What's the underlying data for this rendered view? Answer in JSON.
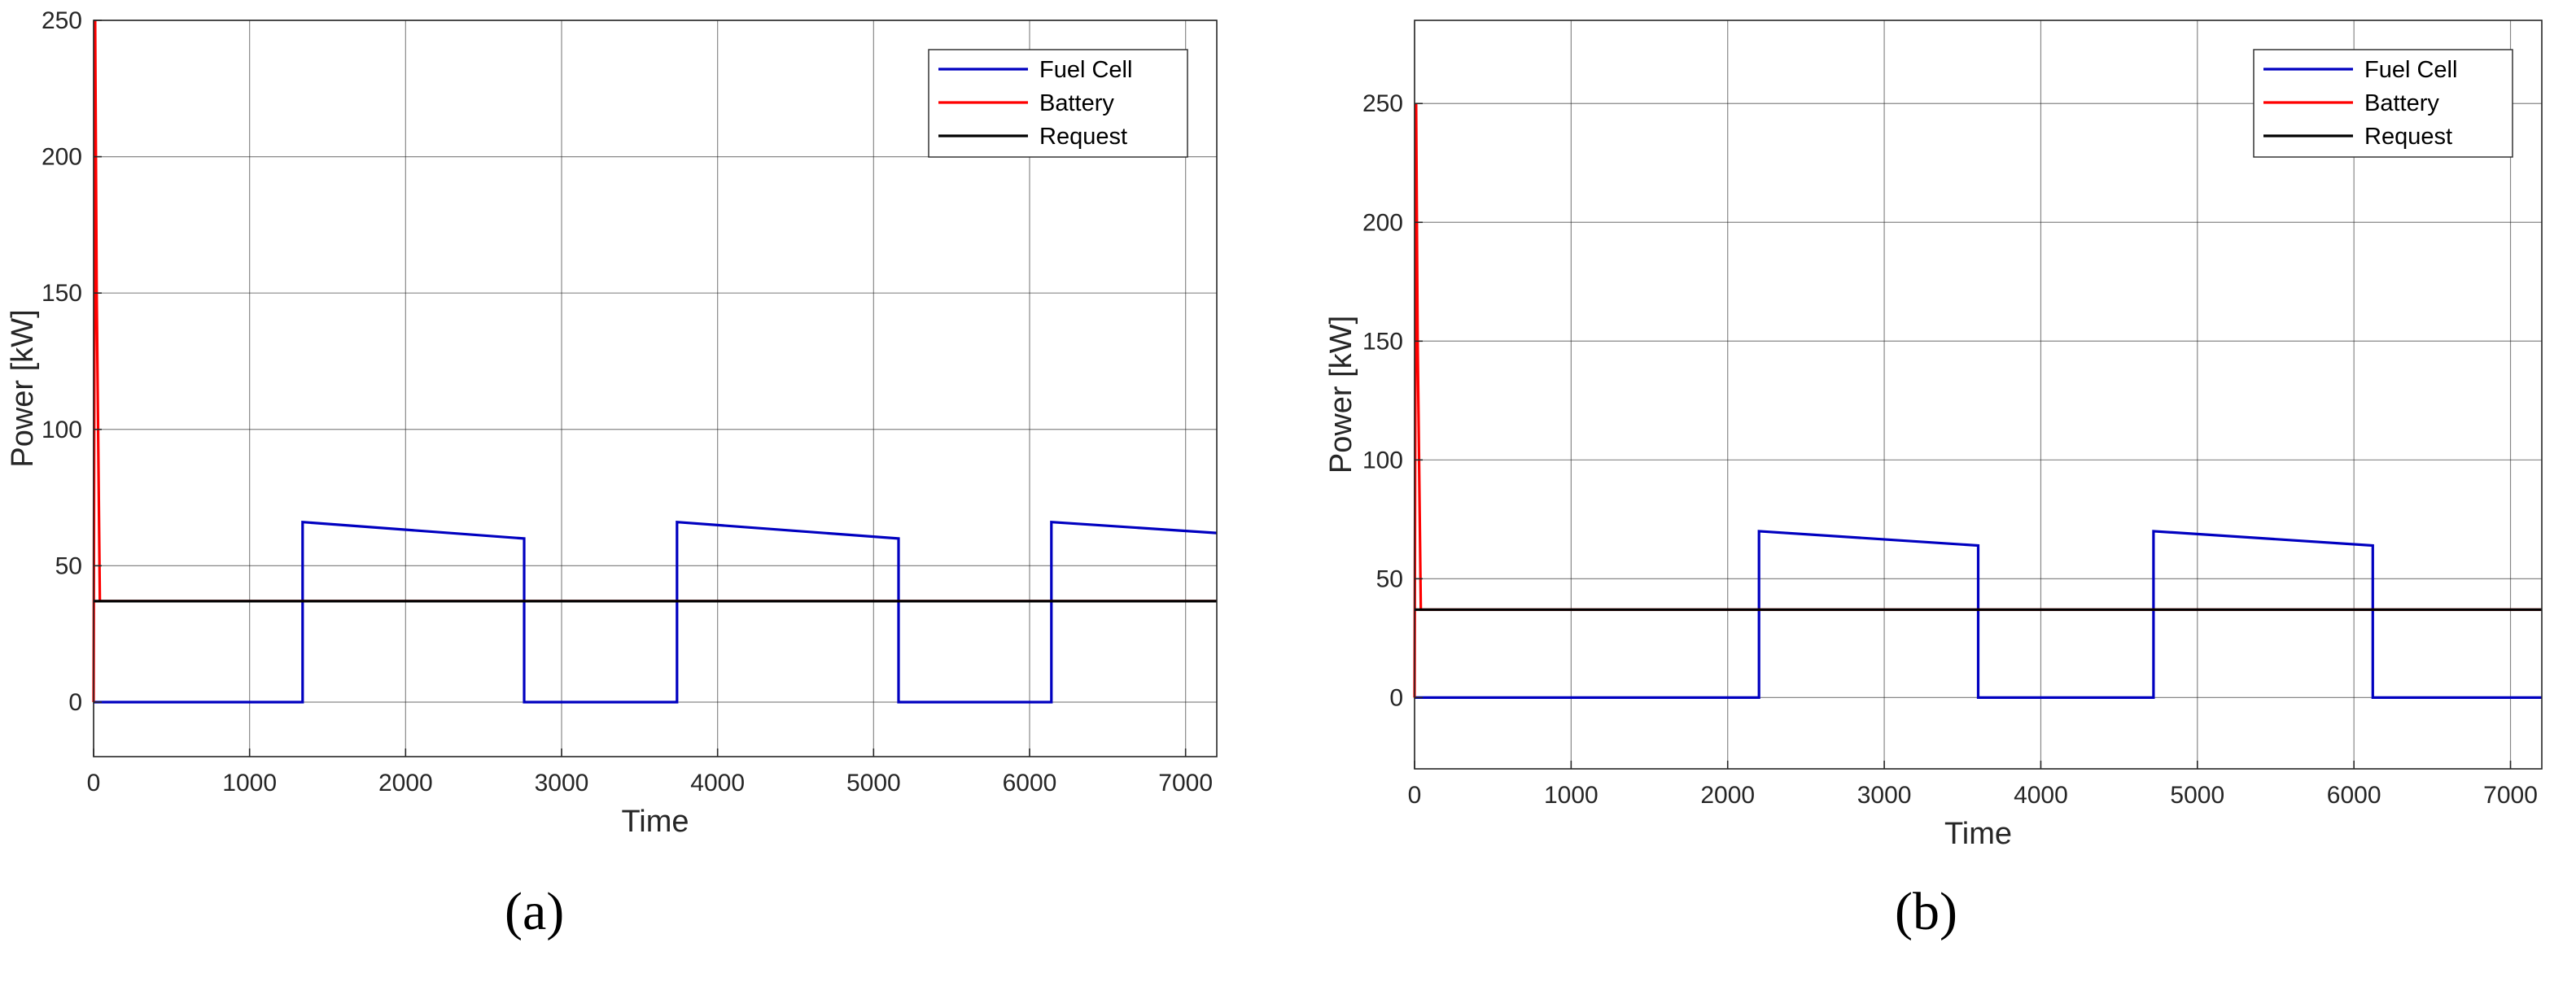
{
  "chart_data": [
    {
      "type": "line",
      "caption": "(a)",
      "xlabel": "Time",
      "ylabel": "Power [kW]",
      "xlim": [
        0,
        7200
      ],
      "ylim": [
        -20,
        250
      ],
      "xticks": [
        0,
        1000,
        2000,
        3000,
        4000,
        5000,
        6000,
        7000
      ],
      "yticks": [
        0,
        50,
        100,
        150,
        200,
        250
      ],
      "grid": true,
      "legend_position": "top-right",
      "colors": {
        "Fuel Cell": "#0000c0",
        "Battery": "#ff0000",
        "Request": "#000000"
      },
      "series": [
        {
          "name": "Fuel Cell",
          "x": [
            0,
            1340,
            1340,
            2760,
            2760,
            3740,
            3740,
            5160,
            5160,
            6140,
            6140,
            7200
          ],
          "y": [
            0,
            0,
            66,
            60,
            0,
            0,
            66,
            60,
            0,
            0,
            66,
            62
          ]
        },
        {
          "name": "Battery",
          "x": [
            0,
            10,
            20,
            40,
            7200
          ],
          "y": [
            0,
            250,
            150,
            37,
            37
          ]
        },
        {
          "name": "Request",
          "x": [
            0,
            7200
          ],
          "y": [
            37,
            37
          ]
        }
      ]
    },
    {
      "type": "line",
      "caption": "(b)",
      "xlabel": "Time",
      "ylabel": "Power [kW]",
      "xlim": [
        0,
        7200
      ],
      "ylim": [
        -30,
        285
      ],
      "xticks": [
        0,
        1000,
        2000,
        3000,
        4000,
        5000,
        6000,
        7000
      ],
      "yticks": [
        0,
        50,
        100,
        150,
        200,
        250
      ],
      "grid": true,
      "legend_position": "top-right",
      "colors": {
        "Fuel Cell": "#0000c0",
        "Battery": "#ff0000",
        "Request": "#000000"
      },
      "series": [
        {
          "name": "Fuel Cell",
          "x": [
            0,
            2200,
            2200,
            3600,
            3600,
            4720,
            4720,
            6120,
            6120,
            7200
          ],
          "y": [
            0,
            0,
            70,
            64,
            0,
            0,
            70,
            64,
            0,
            0
          ]
        },
        {
          "name": "Battery",
          "x": [
            0,
            10,
            20,
            40,
            7200
          ],
          "y": [
            0,
            250,
            150,
            37,
            37
          ]
        },
        {
          "name": "Request",
          "x": [
            0,
            7200
          ],
          "y": [
            37,
            37
          ]
        }
      ]
    }
  ]
}
